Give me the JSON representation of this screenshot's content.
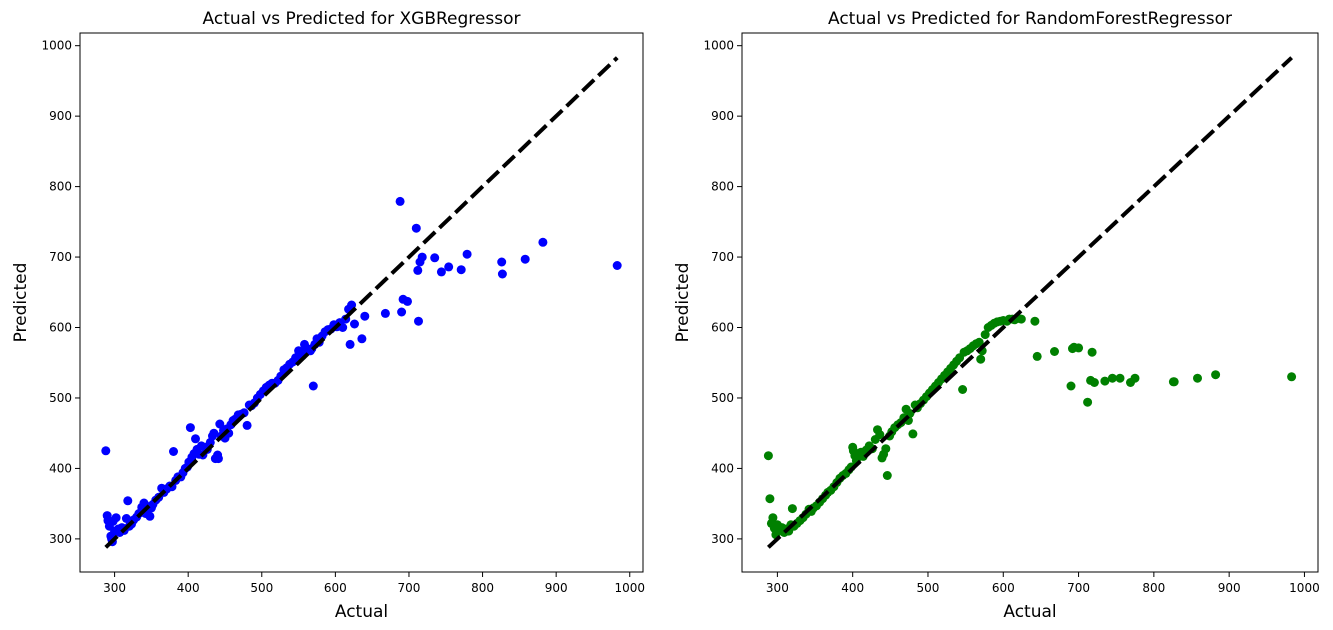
{
  "chart_data": [
    {
      "type": "scatter",
      "title": "Actual vs Predicted for XGBRegressor",
      "xlabel": "Actual",
      "ylabel": "Predicted",
      "xlim": [
        253,
        1018
      ],
      "ylim": [
        253,
        1018
      ],
      "xticks": [
        300,
        400,
        500,
        600,
        700,
        800,
        900,
        1000
      ],
      "yticks": [
        300,
        400,
        500,
        600,
        700,
        800,
        900,
        1000
      ],
      "grid": false,
      "point_color": "#0000ff",
      "reference_line": {
        "style": "dashed",
        "color": "#000000",
        "from": [
          288,
          288
        ],
        "to": [
          983,
          983
        ]
      },
      "points": [
        [
          288,
          425
        ],
        [
          290,
          333
        ],
        [
          291,
          326
        ],
        [
          293,
          318
        ],
        [
          295,
          304
        ],
        [
          296,
          300
        ],
        [
          297,
          296
        ],
        [
          298,
          325
        ],
        [
          300,
          311
        ],
        [
          302,
          330
        ],
        [
          305,
          314
        ],
        [
          307,
          309
        ],
        [
          310,
          316
        ],
        [
          313,
          312
        ],
        [
          316,
          329
        ],
        [
          318,
          354
        ],
        [
          320,
          318
        ],
        [
          323,
          321
        ],
        [
          326,
          327
        ],
        [
          330,
          331
        ],
        [
          333,
          336
        ],
        [
          337,
          345
        ],
        [
          340,
          351
        ],
        [
          342,
          336
        ],
        [
          345,
          346
        ],
        [
          348,
          332
        ],
        [
          350,
          344
        ],
        [
          352,
          349
        ],
        [
          356,
          355
        ],
        [
          360,
          359
        ],
        [
          364,
          372
        ],
        [
          367,
          366
        ],
        [
          371,
          371
        ],
        [
          375,
          375
        ],
        [
          378,
          374
        ],
        [
          380,
          424
        ],
        [
          383,
          383
        ],
        [
          386,
          388
        ],
        [
          390,
          388
        ],
        [
          393,
          394
        ],
        [
          396,
          400
        ],
        [
          399,
          402
        ],
        [
          401,
          409
        ],
        [
          403,
          458
        ],
        [
          405,
          416
        ],
        [
          408,
          421
        ],
        [
          410,
          442
        ],
        [
          412,
          427
        ],
        [
          415,
          420
        ],
        [
          418,
          432
        ],
        [
          420,
          419
        ],
        [
          423,
          430
        ],
        [
          426,
          427
        ],
        [
          430,
          437
        ],
        [
          433,
          446
        ],
        [
          435,
          450
        ],
        [
          437,
          414
        ],
        [
          440,
          419
        ],
        [
          441,
          414
        ],
        [
          443,
          463
        ],
        [
          445,
          446
        ],
        [
          448,
          454
        ],
        [
          450,
          443
        ],
        [
          452,
          456
        ],
        [
          455,
          450
        ],
        [
          458,
          462
        ],
        [
          461,
          468
        ],
        [
          464,
          470
        ],
        [
          468,
          476
        ],
        [
          472,
          477
        ],
        [
          476,
          479
        ],
        [
          480,
          461
        ],
        [
          483,
          490
        ],
        [
          486,
          489
        ],
        [
          490,
          493
        ],
        [
          494,
          500
        ],
        [
          498,
          505
        ],
        [
          502,
          510
        ],
        [
          506,
          515
        ],
        [
          510,
          518
        ],
        [
          514,
          521
        ],
        [
          518,
          521
        ],
        [
          522,
          525
        ],
        [
          526,
          531
        ],
        [
          530,
          540
        ],
        [
          534,
          543
        ],
        [
          538,
          548
        ],
        [
          542,
          551
        ],
        [
          546,
          557
        ],
        [
          548,
          553
        ],
        [
          550,
          567
        ],
        [
          552,
          560
        ],
        [
          555,
          560
        ],
        [
          558,
          576
        ],
        [
          560,
          571
        ],
        [
          563,
          569
        ],
        [
          566,
          567
        ],
        [
          568,
          570
        ],
        [
          570,
          517
        ],
        [
          572,
          576
        ],
        [
          575,
          584
        ],
        [
          578,
          579
        ],
        [
          582,
          588
        ],
        [
          586,
          594
        ],
        [
          590,
          597
        ],
        [
          594,
          598
        ],
        [
          598,
          604
        ],
        [
          602,
          601
        ],
        [
          606,
          607
        ],
        [
          610,
          600
        ],
        [
          614,
          612
        ],
        [
          618,
          626
        ],
        [
          620,
          576
        ],
        [
          622,
          632
        ],
        [
          626,
          605
        ],
        [
          636,
          584
        ],
        [
          640,
          616
        ],
        [
          668,
          620
        ],
        [
          688,
          779
        ],
        [
          690,
          622
        ],
        [
          692,
          640
        ],
        [
          698,
          637
        ],
        [
          710,
          741
        ],
        [
          712,
          681
        ],
        [
          713,
          609
        ],
        [
          715,
          693
        ],
        [
          718,
          700
        ],
        [
          735,
          699
        ],
        [
          744,
          679
        ],
        [
          754,
          686
        ],
        [
          771,
          682
        ],
        [
          779,
          704
        ],
        [
          826,
          693
        ],
        [
          827,
          676
        ],
        [
          858,
          697
        ],
        [
          882,
          721
        ],
        [
          983,
          688
        ]
      ]
    },
    {
      "type": "scatter",
      "title": "Actual vs Predicted for RandomForestRegressor",
      "xlabel": "Actual",
      "ylabel": "Predicted",
      "xlim": [
        253,
        1018
      ],
      "ylim": [
        253,
        1018
      ],
      "xticks": [
        300,
        400,
        500,
        600,
        700,
        800,
        900,
        1000
      ],
      "yticks": [
        300,
        400,
        500,
        600,
        700,
        800,
        900,
        1000
      ],
      "grid": false,
      "point_color": "#008000",
      "reference_line": {
        "style": "dashed",
        "color": "#000000",
        "from": [
          288,
          288
        ],
        "to": [
          983,
          983
        ]
      },
      "points": [
        [
          288,
          418
        ],
        [
          290,
          357
        ],
        [
          292,
          322
        ],
        [
          294,
          330
        ],
        [
          296,
          315
        ],
        [
          298,
          306
        ],
        [
          300,
          320
        ],
        [
          303,
          312
        ],
        [
          306,
          316
        ],
        [
          309,
          309
        ],
        [
          312,
          314
        ],
        [
          315,
          311
        ],
        [
          318,
          320
        ],
        [
          320,
          343
        ],
        [
          322,
          318
        ],
        [
          326,
          322
        ],
        [
          330,
          326
        ],
        [
          334,
          330
        ],
        [
          338,
          335
        ],
        [
          342,
          342
        ],
        [
          345,
          339
        ],
        [
          348,
          344
        ],
        [
          352,
          347
        ],
        [
          356,
          352
        ],
        [
          360,
          357
        ],
        [
          364,
          362
        ],
        [
          367,
          366
        ],
        [
          371,
          369
        ],
        [
          375,
          374
        ],
        [
          379,
          380
        ],
        [
          383,
          386
        ],
        [
          387,
          390
        ],
        [
          391,
          393
        ],
        [
          395,
          398
        ],
        [
          398,
          402
        ],
        [
          400,
          430
        ],
        [
          401,
          425
        ],
        [
          403,
          418
        ],
        [
          405,
          411
        ],
        [
          408,
          420
        ],
        [
          411,
          423
        ],
        [
          414,
          417
        ],
        [
          418,
          426
        ],
        [
          422,
          432
        ],
        [
          426,
          428
        ],
        [
          430,
          441
        ],
        [
          433,
          455
        ],
        [
          436,
          448
        ],
        [
          439,
          415
        ],
        [
          441,
          420
        ],
        [
          444,
          428
        ],
        [
          446,
          390
        ],
        [
          449,
          446
        ],
        [
          452,
          452
        ],
        [
          456,
          458
        ],
        [
          460,
          462
        ],
        [
          464,
          465
        ],
        [
          468,
          472
        ],
        [
          471,
          484
        ],
        [
          474,
          468
        ],
        [
          476,
          478
        ],
        [
          480,
          449
        ],
        [
          483,
          490
        ],
        [
          486,
          486
        ],
        [
          490,
          492
        ],
        [
          494,
          497
        ],
        [
          498,
          502
        ],
        [
          502,
          507
        ],
        [
          506,
          512
        ],
        [
          510,
          517
        ],
        [
          514,
          522
        ],
        [
          518,
          527
        ],
        [
          522,
          532
        ],
        [
          526,
          537
        ],
        [
          530,
          542
        ],
        [
          534,
          547
        ],
        [
          538,
          552
        ],
        [
          542,
          557
        ],
        [
          546,
          512
        ],
        [
          548,
          565
        ],
        [
          552,
          567
        ],
        [
          556,
          570
        ],
        [
          560,
          574
        ],
        [
          564,
          577
        ],
        [
          568,
          579
        ],
        [
          570,
          555
        ],
        [
          572,
          567
        ],
        [
          576,
          590
        ],
        [
          580,
          600
        ],
        [
          584,
          603
        ],
        [
          588,
          606
        ],
        [
          592,
          608
        ],
        [
          596,
          609
        ],
        [
          600,
          610
        ],
        [
          605,
          609
        ],
        [
          608,
          612
        ],
        [
          612,
          612
        ],
        [
          615,
          611
        ],
        [
          620,
          613
        ],
        [
          624,
          612
        ],
        [
          642,
          609
        ],
        [
          645,
          559
        ],
        [
          668,
          566
        ],
        [
          690,
          517
        ],
        [
          692,
          570
        ],
        [
          694,
          572
        ],
        [
          700,
          571
        ],
        [
          712,
          494
        ],
        [
          716,
          525
        ],
        [
          718,
          565
        ],
        [
          721,
          522
        ],
        [
          735,
          524
        ],
        [
          745,
          528
        ],
        [
          755,
          528
        ],
        [
          769,
          522
        ],
        [
          775,
          528
        ],
        [
          826,
          523
        ],
        [
          827,
          523
        ],
        [
          858,
          528
        ],
        [
          882,
          533
        ],
        [
          983,
          530
        ]
      ]
    }
  ]
}
